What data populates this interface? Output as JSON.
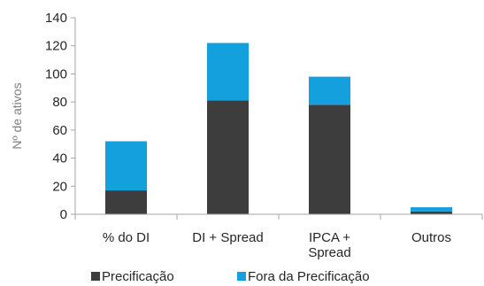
{
  "chart_data": {
    "type": "bar",
    "stacked": true,
    "categories": [
      "% do DI",
      "DI + Spread",
      "IPCA + Spread",
      "Outros"
    ],
    "category_lines": [
      [
        "% do DI"
      ],
      [
        "DI + Spread"
      ],
      [
        "IPCA +",
        "Spread"
      ],
      [
        "Outros"
      ]
    ],
    "series": [
      {
        "name": "Precificação",
        "values": [
          17,
          81,
          78,
          2
        ]
      },
      {
        "name": "Fora da Precificação",
        "values": [
          35,
          41,
          20,
          3
        ]
      }
    ],
    "ylabel": "Nº de ativos",
    "xlabel": "",
    "ylim": [
      0,
      140
    ],
    "yticks": [
      0,
      20,
      40,
      60,
      80,
      100,
      120,
      140
    ],
    "grid": false,
    "legend_position": "bottom"
  },
  "colors": {
    "series": [
      "#3d3d3d",
      "#14a0dc"
    ],
    "axis": "#a6a6a6",
    "text": "#262626",
    "ylabel": "#7f7f7f"
  }
}
